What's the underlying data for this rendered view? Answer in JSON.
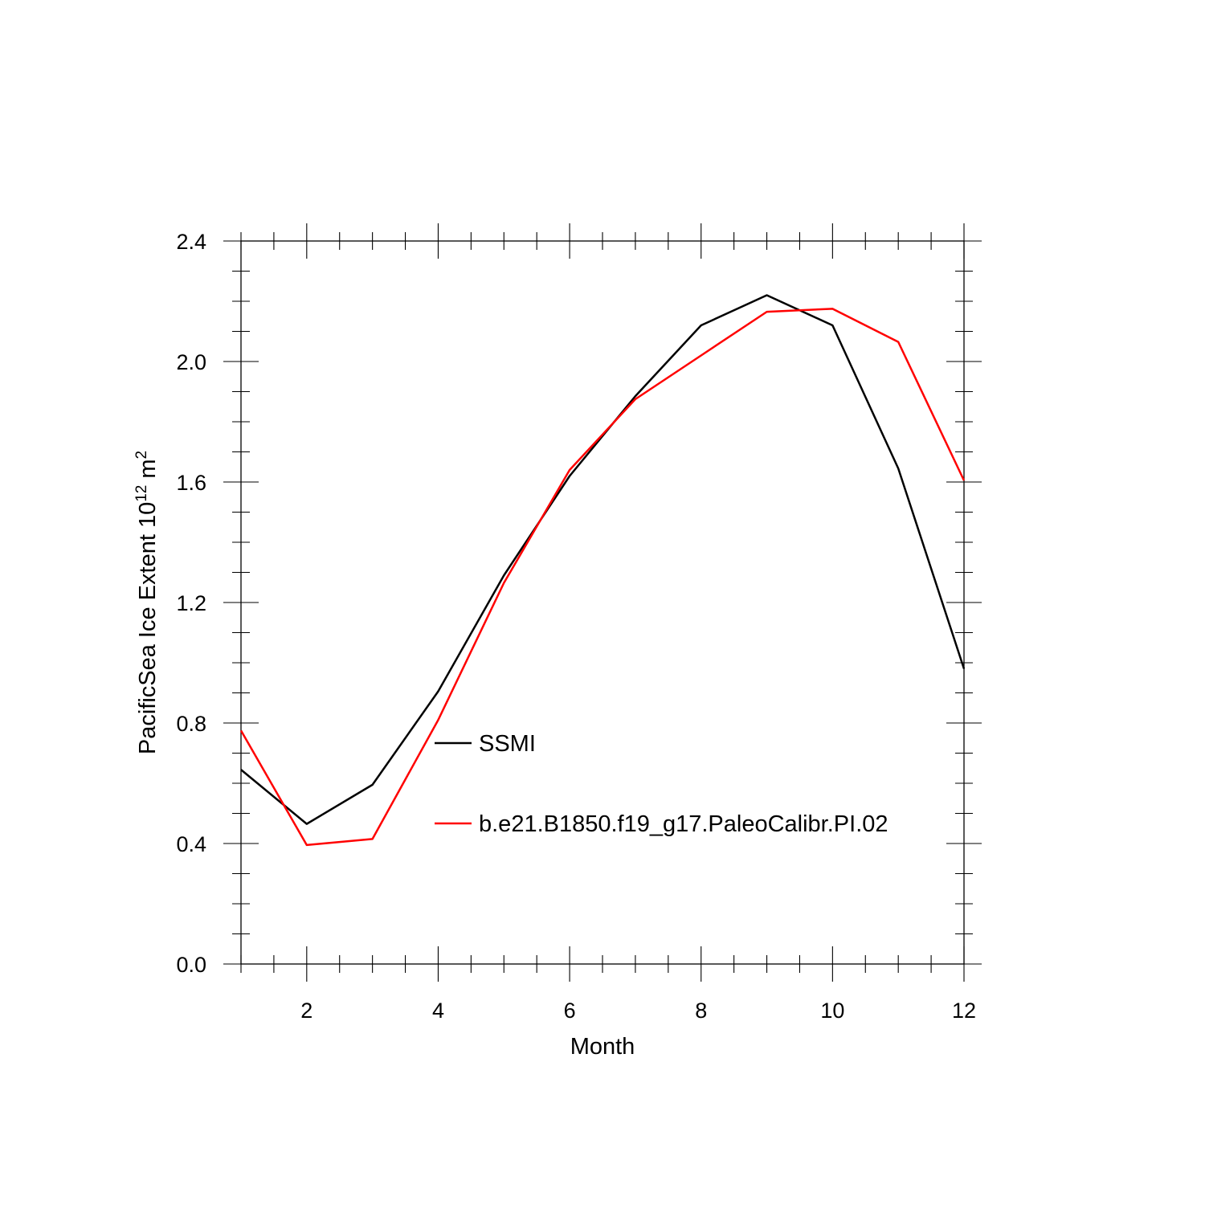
{
  "chart_data": {
    "type": "line",
    "title": "",
    "xlabel": "Month",
    "ylabel_main": "PacificSea Ice Extent 10",
    "ylabel_sup1": "12",
    "ylabel_mid": " m",
    "ylabel_sup2": "2",
    "xlim": [
      1,
      12
    ],
    "ylim": [
      0,
      2.4
    ],
    "xticks": [
      2,
      4,
      6,
      8,
      10,
      12
    ],
    "xtick_labels": [
      "2",
      "4",
      "6",
      "8",
      "10",
      "12"
    ],
    "yticks": [
      0,
      0.4,
      0.8,
      1.2,
      1.6,
      2.0,
      2.4
    ],
    "ytick_labels": [
      "0.0",
      "0.4",
      "0.8",
      "1.2",
      "1.6",
      "2.0",
      "2.4"
    ],
    "grid": false,
    "legend_position": "center",
    "x": [
      1,
      2,
      3,
      4,
      5,
      6,
      7,
      8,
      9,
      10,
      11,
      12
    ],
    "series": [
      {
        "name": "SSMI",
        "color": "#000000",
        "values": [
          0.645,
          0.465,
          0.595,
          0.905,
          1.29,
          1.62,
          1.885,
          2.12,
          2.22,
          2.12,
          1.645,
          0.98
        ]
      },
      {
        "name": "b.e21.B1850.f19_g17.PaleoCalibr.PI.02",
        "color": "#ff0000",
        "values": [
          0.775,
          0.395,
          0.415,
          0.81,
          1.265,
          1.64,
          1.875,
          2.02,
          2.165,
          2.175,
          2.065,
          1.605
        ]
      }
    ]
  }
}
